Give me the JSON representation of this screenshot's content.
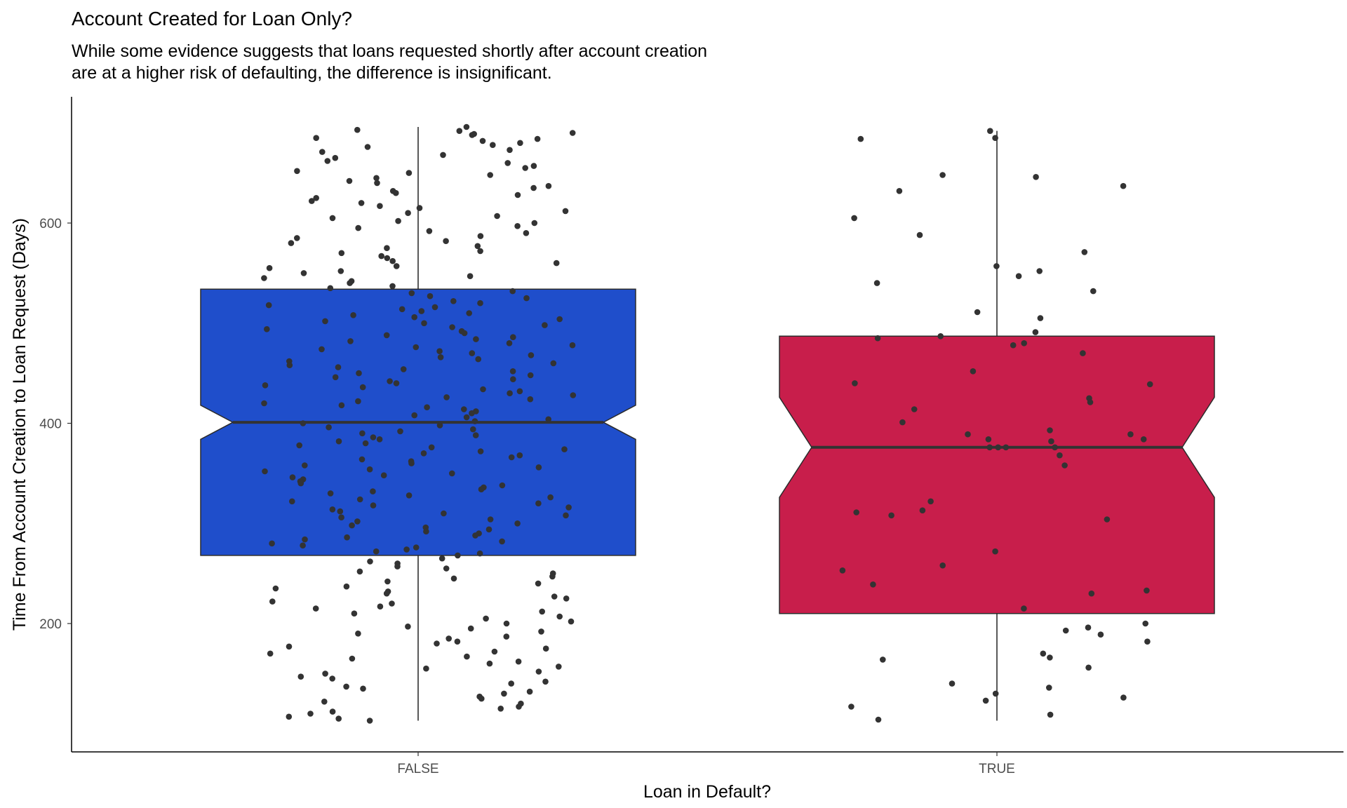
{
  "title": "Account Created for Loan Only?",
  "subtitle_lines": [
    "While some evidence suggests that loans requested shortly after account creation",
    "are at a higher risk of defaulting, the difference is insignificant."
  ],
  "chart_data": {
    "type": "boxplot",
    "notched": true,
    "title": "Account Created for Loan Only?",
    "xlabel": "Loan in Default?",
    "ylabel": "Time From Account Creation to Loan Request (Days)",
    "categories": [
      "FALSE",
      "TRUE"
    ],
    "ylim": [
      75,
      705
    ],
    "yticks": [
      200,
      400,
      600
    ],
    "grid": false,
    "boxes": [
      {
        "category": "FALSE",
        "color": "#1f4ecb",
        "min": 103,
        "q1": 268,
        "median": 401,
        "q3": 534,
        "max": 696,
        "notch_low": 384,
        "notch_high": 418
      },
      {
        "category": "TRUE",
        "color": "#c81e4b",
        "min": 103,
        "q1": 210,
        "median": 376,
        "q3": 487,
        "max": 692,
        "notch_low": 326,
        "notch_high": 426
      }
    ],
    "points_color": "#333333",
    "jitter_points": {
      "FALSE": [
        696,
        693,
        692,
        690,
        689,
        688,
        685,
        684,
        682,
        680,
        678,
        676,
        673,
        671,
        668,
        665,
        662,
        660,
        657,
        655,
        652,
        650,
        648,
        645,
        642,
        640,
        637,
        635,
        632,
        630,
        628,
        625,
        622,
        620,
        617,
        615,
        612,
        610,
        607,
        605,
        602,
        600,
        597,
        595,
        592,
        590,
        587,
        585,
        582,
        580,
        577,
        575,
        572,
        570,
        567,
        565,
        562,
        560,
        557,
        555,
        552,
        550,
        547,
        545,
        542,
        540,
        537,
        535,
        532,
        530,
        527,
        525,
        522,
        520,
        518,
        516,
        514,
        512,
        510,
        508,
        506,
        504,
        502,
        500,
        498,
        496,
        494,
        492,
        490,
        488,
        486,
        484,
        482,
        480,
        478,
        476,
        474,
        472,
        470,
        468,
        466,
        464,
        462,
        460,
        458,
        456,
        454,
        452,
        450,
        448,
        446,
        444,
        442,
        440,
        438,
        436,
        434,
        432,
        430,
        428,
        426,
        424,
        422,
        420,
        418,
        416,
        414,
        412,
        410,
        408,
        406,
        404,
        402,
        400,
        398,
        396,
        394,
        392,
        390,
        388,
        386,
        384,
        382,
        380,
        378,
        376,
        374,
        372,
        370,
        368,
        366,
        364,
        362,
        360,
        358,
        356,
        354,
        352,
        350,
        348,
        346,
        344,
        342,
        340,
        338,
        336,
        334,
        332,
        330,
        328,
        326,
        324,
        322,
        320,
        318,
        316,
        314,
        312,
        310,
        308,
        306,
        304,
        302,
        300,
        298,
        296,
        294,
        292,
        290,
        288,
        286,
        284,
        282,
        280,
        278,
        276,
        274,
        272,
        270,
        268,
        265,
        262,
        260,
        257,
        255,
        252,
        250,
        247,
        245,
        242,
        240,
        237,
        235,
        232,
        230,
        227,
        225,
        222,
        220,
        217,
        215,
        212,
        210,
        207,
        205,
        202,
        200,
        197,
        195,
        192,
        190,
        187,
        185,
        182,
        180,
        177,
        175,
        172,
        170,
        167,
        165,
        162,
        160,
        157,
        155,
        152,
        150,
        147,
        145,
        142,
        140,
        137,
        135,
        132,
        130,
        127,
        125,
        122,
        120,
        117,
        115,
        112,
        110,
        107,
        105,
        103
      ],
      "TRUE": [
        692,
        685,
        684,
        648,
        646,
        637,
        632,
        605,
        588,
        571,
        557,
        552,
        547,
        540,
        532,
        511,
        505,
        491,
        487,
        485,
        480,
        478,
        470,
        452,
        440,
        439,
        425,
        421,
        414,
        401,
        393,
        389,
        389,
        384,
        384,
        382,
        376,
        376,
        376,
        376,
        368,
        358,
        322,
        313,
        311,
        308,
        304,
        272,
        258,
        253,
        239,
        233,
        230,
        215,
        200,
        196,
        193,
        189,
        182,
        170,
        166,
        164,
        156,
        140,
        136,
        130,
        126,
        123,
        117,
        109,
        104
      ]
    }
  }
}
